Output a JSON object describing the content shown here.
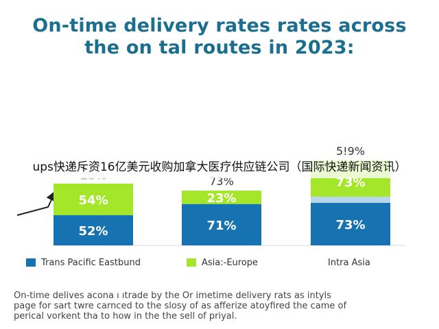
{
  "title_lines": [
    "On-time delivery rates rates across",
    "the on tal routes in 2023:"
  ],
  "overlay_text": "ups快递斥资16亿美元收购加拿大医疗供应链公司（国际快递新闻资讯）",
  "footnote_lines": [
    "On-time delives acona ı ıtrade by the Or imetime delivery rats as intyls",
    "page for sart twre carnced to the slosy of as afferize atoyfired the came of",
    "perical vorkent tha to how in the the sell of priyal."
  ],
  "legend": [
    {
      "label": "Trans Pacific Eastbund"
    },
    {
      "label": "Asia:-Europe"
    },
    {
      "label": "Intra Asia"
    }
  ],
  "colors": {
    "blue": "#1772b2",
    "green": "#a4e62a",
    "title": "#1b6e8f",
    "light_blue": "#b8d6ec"
  },
  "chart_data": {
    "type": "bar",
    "stacked": true,
    "categories": [
      "Trans Pacific Eastbund",
      "Asia:-Europe",
      "Intra Asia"
    ],
    "series": [
      {
        "name": "Trans Pacific Eastbund",
        "color": "#1772b2",
        "values": [
          52,
          71,
          73
        ],
        "labels": [
          "52%",
          "71%",
          "73%"
        ]
      },
      {
        "name": "Asia:-Europe",
        "color": "#a4e62a",
        "values": [
          54,
          23,
          73
        ],
        "labels": [
          "54%",
          "23%",
          "73%"
        ]
      }
    ],
    "top_labels": [
      "20%",
      "73%",
      "5!9%"
    ],
    "grid": false,
    "legend_position": "bottom"
  }
}
